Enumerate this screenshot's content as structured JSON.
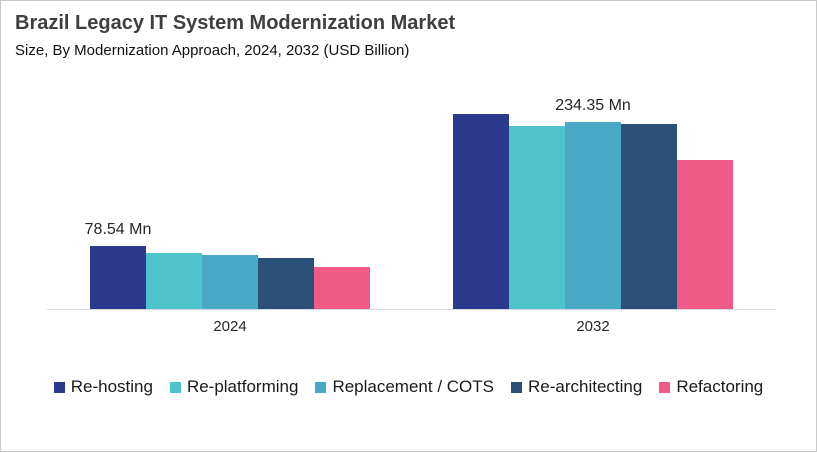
{
  "header": {
    "title": "Brazil Legacy IT System Modernization Market",
    "subtitle": "Size, By Modernization Approach, 2024, 2032 (USD Billion)"
  },
  "chart_data": {
    "type": "bar",
    "title": "Brazil Legacy IT System Modernization Market",
    "subtitle": "Size, By Modernization Approach, 2024, 2032 (USD Billion)",
    "categories": [
      "2024",
      "2032"
    ],
    "series": [
      {
        "name": "Re-hosting",
        "color": "#2b3a8c",
        "values": [
          78.54,
          244
        ]
      },
      {
        "name": "Re-platforming",
        "color": "#4ec3ce",
        "values": [
          70,
          229
        ]
      },
      {
        "name": "Replacement / COTS",
        "color": "#49a8c5",
        "values": [
          68,
          234.35
        ]
      },
      {
        "name": "Re-architecting",
        "color": "#2b5077",
        "values": [
          64,
          231
        ]
      },
      {
        "name": "Refactoring",
        "color": "#ef5a87",
        "values": [
          52.5,
          186
        ]
      }
    ],
    "data_labels": [
      {
        "category": "2024",
        "series": "Re-hosting",
        "text": "78.54 Mn"
      },
      {
        "category": "2032",
        "series": "Replacement / COTS",
        "text": "234.35 Mn"
      }
    ],
    "unit": "Mn",
    "ylim": [
      0,
      260
    ],
    "grid": false,
    "y_axis_visible": false,
    "legend_position": "bottom",
    "axis_line_color": "#d9d9d9",
    "label_text_color": "#262626"
  }
}
